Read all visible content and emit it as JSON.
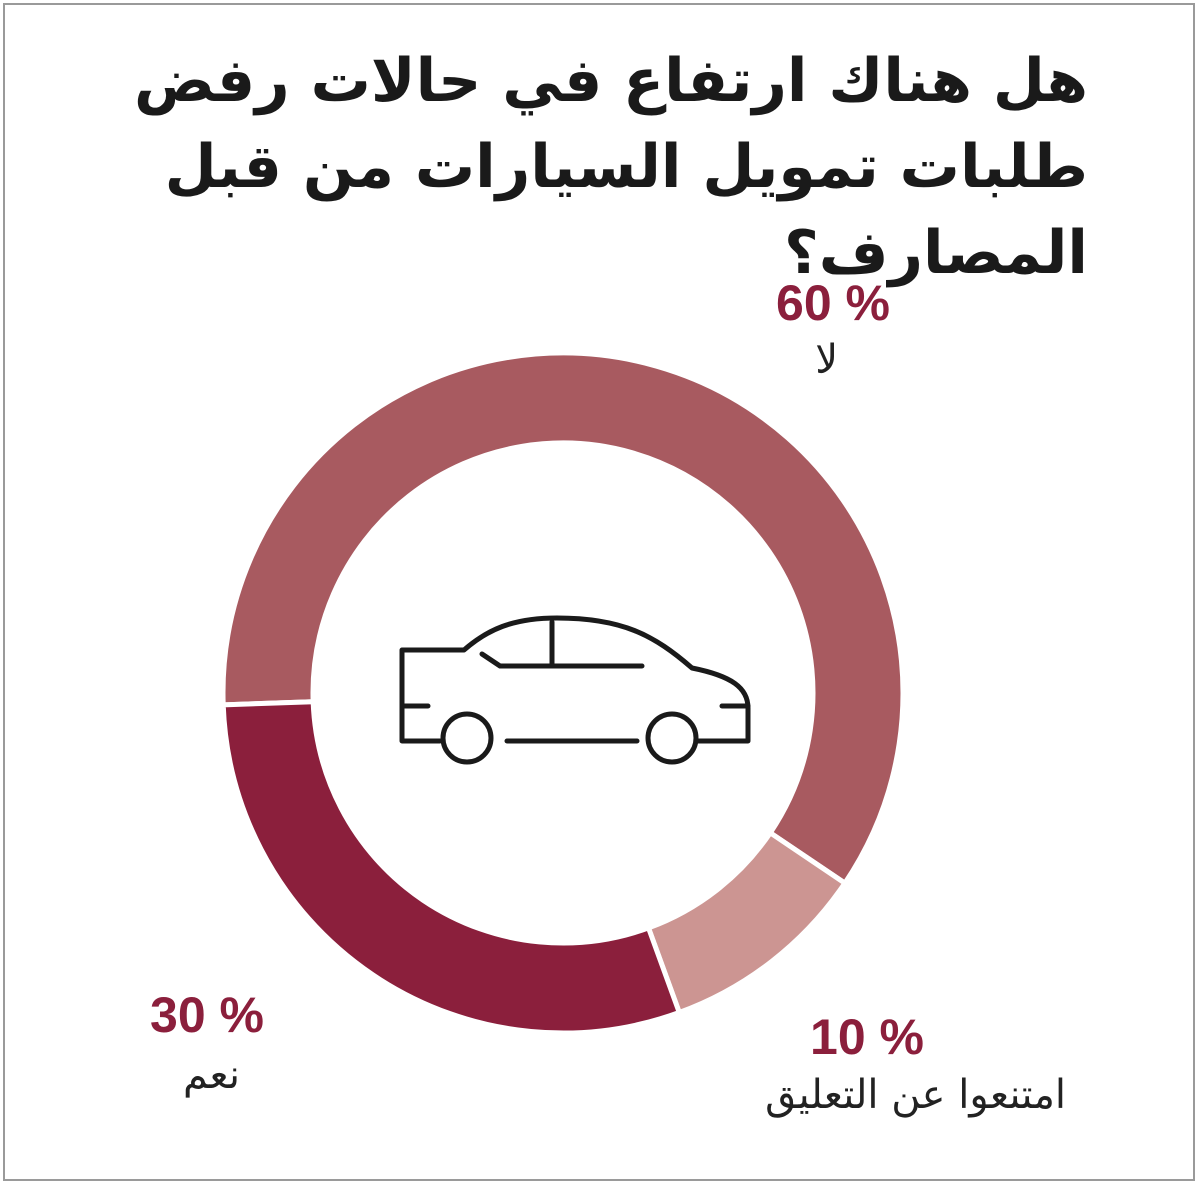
{
  "title": "هل هناك ارتفاع في حالات رفض طلبات تمويل السيارات من قبل المصارف؟",
  "chart_data": {
    "type": "pie",
    "title": "هل هناك ارتفاع في حالات رفض طلبات تمويل السيارات من قبل المصارف؟",
    "categories": [
      "لا",
      "امتنعوا عن التعليق",
      "نعم"
    ],
    "values": [
      60,
      10,
      30
    ],
    "value_labels": [
      "% 60",
      "% 10",
      "% 30"
    ],
    "colors": [
      "#a85a60",
      "#cc9592",
      "#8b1f3c"
    ],
    "label_color": "#8b1f3c",
    "center_icon": "car-icon"
  }
}
